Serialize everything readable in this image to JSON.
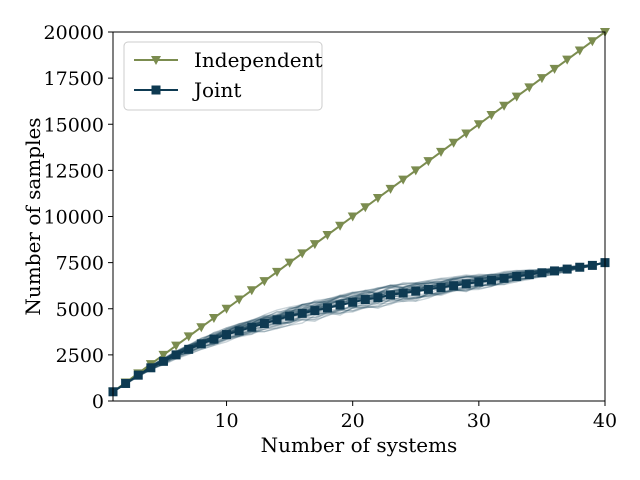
{
  "chart_data": {
    "type": "line",
    "xlabel": "Number of systems",
    "ylabel": "Number of samples",
    "xlim": [
      1,
      40
    ],
    "ylim": [
      0,
      20000
    ],
    "x_ticks": [
      10,
      20,
      30,
      40
    ],
    "y_ticks": [
      0,
      2500,
      5000,
      7500,
      10000,
      12500,
      15000,
      17500,
      20000
    ],
    "grid": false,
    "legend_position": "top-left",
    "x": [
      1,
      2,
      3,
      4,
      5,
      6,
      7,
      8,
      9,
      10,
      11,
      12,
      13,
      14,
      15,
      16,
      17,
      18,
      19,
      20,
      21,
      22,
      23,
      24,
      25,
      26,
      27,
      28,
      29,
      30,
      31,
      32,
      33,
      34,
      35,
      36,
      37,
      38,
      39,
      40
    ],
    "series": [
      {
        "name": "Independent",
        "color": "#7b8c4f",
        "marker": "triangle-down",
        "values": [
          500,
          1000,
          1500,
          2000,
          2500,
          3000,
          3500,
          4000,
          4500,
          5000,
          5500,
          6000,
          6500,
          7000,
          7500,
          8000,
          8500,
          9000,
          9500,
          10000,
          10500,
          11000,
          11500,
          12000,
          12500,
          13000,
          13500,
          14000,
          14500,
          15000,
          15500,
          16000,
          16500,
          17000,
          17500,
          18000,
          18500,
          19000,
          19500,
          20000
        ]
      },
      {
        "name": "Joint",
        "color": "#0e3a52",
        "marker": "square",
        "values": [
          500,
          950,
          1400,
          1800,
          2150,
          2500,
          2800,
          3100,
          3350,
          3600,
          3800,
          4000,
          4200,
          4400,
          4600,
          4750,
          4900,
          5050,
          5200,
          5350,
          5500,
          5600,
          5750,
          5850,
          5950,
          6050,
          6150,
          6250,
          6350,
          6450,
          6550,
          6650,
          6750,
          6850,
          6950,
          7050,
          7150,
          7250,
          7350,
          7500
        ]
      }
    ],
    "background_runs": {
      "count": 40,
      "color": "#0e3a52",
      "opacity": 0.22
    }
  }
}
